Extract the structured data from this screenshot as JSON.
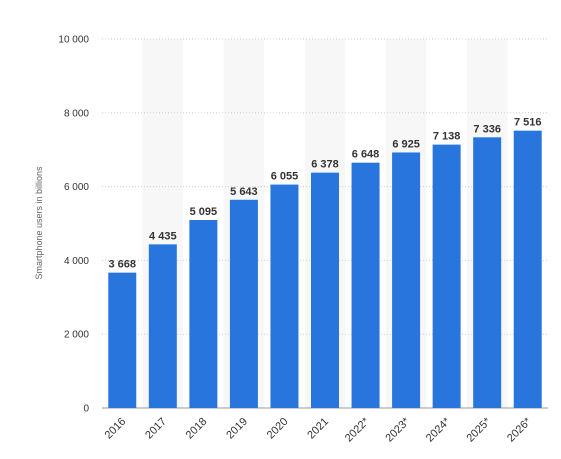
{
  "chart_data": {
    "type": "bar",
    "categories": [
      "2016",
      "2017",
      "2018",
      "2019",
      "2020",
      "2021",
      "2022*",
      "2023*",
      "2024*",
      "2025*",
      "2026*"
    ],
    "values": [
      3668,
      4435,
      5095,
      5643,
      6055,
      6378,
      6648,
      6925,
      7138,
      7336,
      7516
    ],
    "data_labels": [
      "3 668",
      "4 435",
      "5 095",
      "5 643",
      "6 055",
      "6 378",
      "6 648",
      "6 925",
      "7 138",
      "7 336",
      "7 516"
    ],
    "ylabel": "Smartphone users in billions",
    "xlabel": "",
    "ylim": [
      0,
      10000
    ],
    "yticks": [
      0,
      2000,
      4000,
      6000,
      8000,
      10000
    ],
    "ytick_labels": [
      "0",
      "2 000",
      "4 000",
      "6 000",
      "8 000",
      "10 000"
    ],
    "grid": true,
    "legend": "none",
    "bar_color": "#2876dd",
    "band_color": "#f7f7f7",
    "grid_color": "#cfcfcf"
  }
}
